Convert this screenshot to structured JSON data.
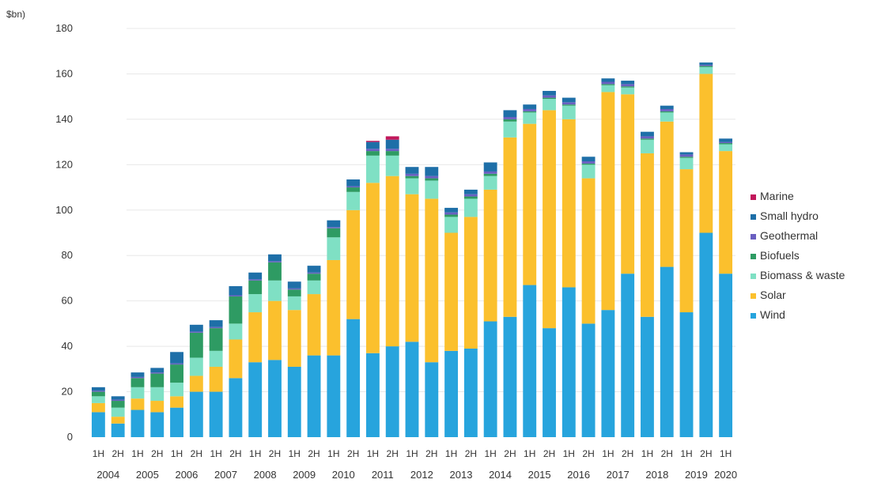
{
  "chart_data": {
    "type": "bar",
    "stacked": true,
    "unit_label": "$bn)",
    "ylim": [
      0,
      180
    ],
    "yticks": [
      "0",
      "20",
      "40",
      "60",
      "80",
      "100",
      "120",
      "140",
      "160",
      "180"
    ],
    "grid": true,
    "legend_position": "right",
    "years": [
      "2004",
      "2005",
      "2006",
      "2007",
      "2008",
      "2009",
      "2010",
      "2011",
      "2012",
      "2013",
      "2014",
      "2015",
      "2016",
      "2017",
      "2018",
      "2019",
      "2020"
    ],
    "categories": [
      "1H 2004",
      "2H 2004",
      "1H 2005",
      "2H 2005",
      "1H 2006",
      "2H 2006",
      "1H 2007",
      "2H 2007",
      "1H 2008",
      "2H 2008",
      "1H 2009",
      "2H 2009",
      "1H 2010",
      "2H 2010",
      "1H 2011",
      "2H 2011",
      "1H 2012",
      "2H 2012",
      "1H 2013",
      "2H 2013",
      "1H 2014",
      "2H 2014",
      "1H 2015",
      "2H 2015",
      "1H 2016",
      "2H 2016",
      "1H 2017",
      "2H 2017",
      "1H 2018",
      "2H 2018",
      "1H 2019",
      "2H 2019",
      "1H 2020"
    ],
    "half_labels": [
      "1H",
      "2H",
      "1H",
      "2H",
      "1H",
      "2H",
      "1H",
      "2H",
      "1H",
      "2H",
      "1H",
      "2H",
      "1H",
      "2H",
      "1H",
      "2H",
      "1H",
      "2H",
      "1H",
      "2H",
      "1H",
      "2H",
      "1H",
      "2H",
      "1H",
      "2H",
      "1H",
      "2H",
      "1H",
      "2H",
      "1H",
      "2H",
      "1H"
    ],
    "series": [
      {
        "name": "Wind",
        "color": "#27a4dd",
        "values": [
          11,
          6,
          12,
          11,
          13,
          20,
          20,
          26,
          33,
          34,
          31,
          36,
          36,
          52,
          37,
          40,
          42,
          33,
          38,
          39,
          51,
          53,
          67,
          48,
          66,
          50,
          56,
          72,
          53,
          75,
          55,
          90,
          72
        ]
      },
      {
        "name": "Solar",
        "color": "#fbc02d",
        "values": [
          4,
          3,
          5,
          5,
          5,
          7,
          11,
          17,
          22,
          26,
          25,
          27,
          42,
          48,
          75,
          75,
          65,
          72,
          52,
          58,
          58,
          79,
          71,
          96,
          74,
          64,
          96,
          79,
          72,
          64,
          63,
          70,
          54
        ]
      },
      {
        "name": "Biomass & waste",
        "color": "#7fe0c4",
        "values": [
          3,
          4,
          5,
          6,
          6,
          8,
          7,
          7,
          8,
          9,
          6,
          6,
          10,
          8,
          12,
          9,
          7,
          8,
          7,
          8,
          6,
          7,
          5,
          5,
          6,
          6,
          3,
          3,
          6,
          4,
          5,
          3,
          3
        ]
      },
      {
        "name": "Biofuels",
        "color": "#2e9b63",
        "values": [
          2,
          3,
          4,
          6,
          8,
          11,
          10,
          12,
          6,
          8,
          3,
          3,
          4,
          2,
          2,
          2,
          1,
          1,
          1,
          1,
          1,
          1,
          0.5,
          0.5,
          0.5,
          0.5,
          0.5,
          0.5,
          0.5,
          0.5,
          0.5,
          0.5,
          0.5
        ]
      },
      {
        "name": "Geothermal",
        "color": "#6a5fc1",
        "values": [
          0.5,
          0.5,
          0.5,
          0.5,
          0.5,
          0.5,
          0.5,
          0.5,
          0.5,
          0.5,
          0.5,
          0.5,
          0.5,
          0.5,
          1,
          1,
          1,
          1,
          1,
          1,
          1,
          1,
          1,
          1,
          1,
          1,
          1,
          1,
          1,
          1,
          1,
          0.5,
          0.5
        ]
      },
      {
        "name": "Small hydro",
        "color": "#1e6fa8",
        "values": [
          1.5,
          1.5,
          2,
          2,
          5,
          3,
          3,
          4,
          3,
          3,
          3,
          3,
          3,
          3,
          3,
          4,
          3,
          4,
          2,
          2,
          4,
          3,
          2,
          2,
          2,
          2,
          1.5,
          1.5,
          2,
          1.5,
          1,
          1,
          1.5
        ]
      },
      {
        "name": "Marine",
        "color": "#c2185b",
        "values": [
          0,
          0,
          0,
          0,
          0,
          0,
          0,
          0,
          0,
          0,
          0,
          0,
          0,
          0,
          0.5,
          1.5,
          0,
          0,
          0,
          0,
          0,
          0,
          0,
          0,
          0,
          0,
          0,
          0,
          0,
          0,
          0,
          0,
          0
        ]
      }
    ],
    "legend_order": [
      "Marine",
      "Small hydro",
      "Geothermal",
      "Biofuels",
      "Biomass & waste",
      "Solar",
      "Wind"
    ]
  }
}
